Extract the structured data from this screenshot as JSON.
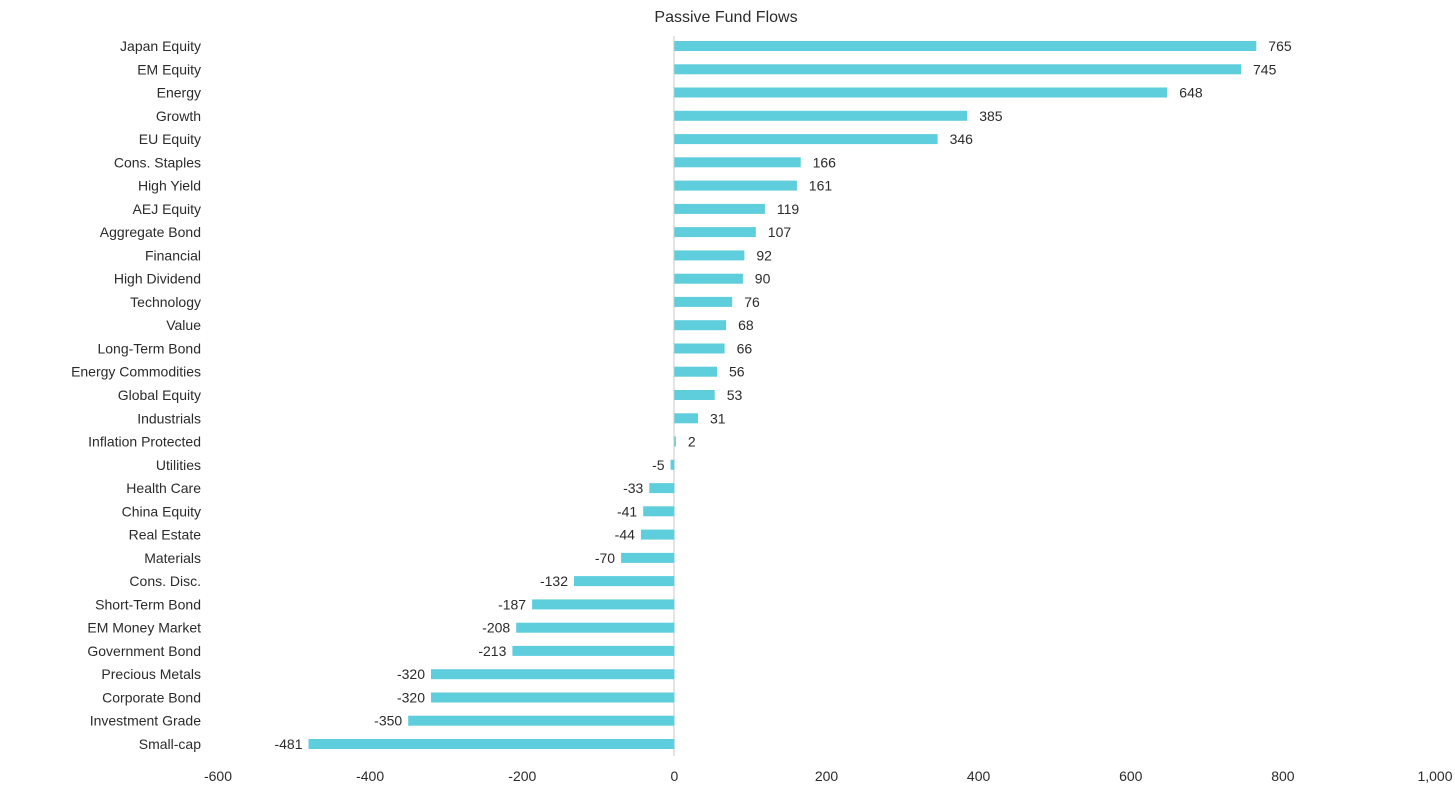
{
  "chart_data": {
    "type": "bar",
    "orientation": "horizontal",
    "title": "Passive Fund Flows",
    "xlabel": "",
    "ylabel": "",
    "xlim": [
      -600,
      1000
    ],
    "x_ticks": [
      -600,
      -400,
      -200,
      0,
      200,
      400,
      600,
      800,
      1000
    ],
    "x_tick_labels": [
      "-600",
      "-400",
      "-200",
      "0",
      "200",
      "400",
      "600",
      "800",
      "1,000"
    ],
    "grid": false,
    "legend": "none",
    "bar_color": "#5ECEDC",
    "categories": [
      "Japan Equity",
      "EM Equity",
      "Energy",
      "Growth",
      "EU Equity",
      "Cons. Staples",
      "High Yield",
      "AEJ Equity",
      "Aggregate Bond",
      "Financial",
      "High Dividend",
      "Technology",
      "Value",
      "Long-Term Bond",
      "Energy Commodities",
      "Global Equity",
      "Industrials",
      "Inflation Protected",
      "Utilities",
      "Health Care",
      "China Equity",
      "Real Estate",
      "Materials",
      "Cons. Disc.",
      "Short-Term Bond",
      "EM Money Market",
      "Government Bond",
      "Precious Metals",
      "Corporate Bond",
      "Investment Grade",
      "Small-cap"
    ],
    "values": [
      765,
      745,
      648,
      385,
      346,
      166,
      161,
      119,
      107,
      92,
      90,
      76,
      68,
      66,
      56,
      53,
      31,
      2,
      -5,
      -33,
      -41,
      -44,
      -70,
      -132,
      -187,
      -208,
      -213,
      -320,
      -320,
      -350,
      -481
    ]
  }
}
